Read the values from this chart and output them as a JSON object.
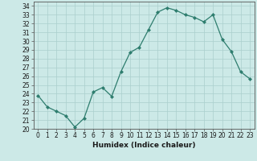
{
  "x": [
    0,
    1,
    2,
    3,
    4,
    5,
    6,
    7,
    8,
    9,
    10,
    11,
    12,
    13,
    14,
    15,
    16,
    17,
    18,
    19,
    20,
    21,
    22,
    23
  ],
  "y": [
    23.8,
    22.5,
    22.0,
    21.5,
    20.2,
    21.2,
    24.2,
    24.7,
    23.7,
    26.5,
    28.7,
    29.3,
    31.3,
    33.3,
    33.8,
    33.5,
    33.0,
    32.7,
    32.2,
    33.0,
    30.2,
    28.8,
    26.5,
    25.7
  ],
  "line_color": "#2e7d6e",
  "marker": "D",
  "marker_size": 2.0,
  "bg_color": "#cce9e7",
  "grid_color": "#aacfcd",
  "xlabel": "Humidex (Indice chaleur)",
  "ylabel": "",
  "title": "",
  "xlim": [
    -0.5,
    23.5
  ],
  "ylim": [
    20,
    34.5
  ],
  "yticks": [
    20,
    21,
    22,
    23,
    24,
    25,
    26,
    27,
    28,
    29,
    30,
    31,
    32,
    33,
    34
  ],
  "xticks": [
    0,
    1,
    2,
    3,
    4,
    5,
    6,
    7,
    8,
    9,
    10,
    11,
    12,
    13,
    14,
    15,
    16,
    17,
    18,
    19,
    20,
    21,
    22,
    23
  ],
  "tick_fontsize": 5.5,
  "xlabel_fontsize": 6.5
}
